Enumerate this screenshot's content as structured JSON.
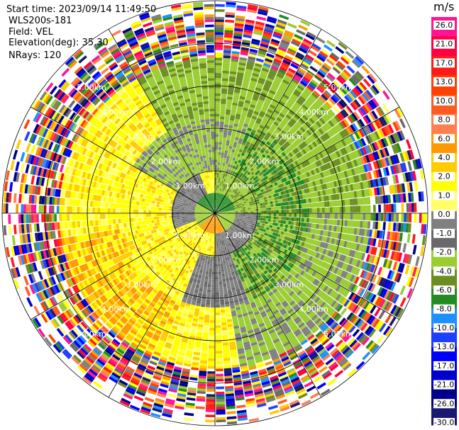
{
  "header": {
    "start_time": "Start time: 2023/09/14 11:49:50",
    "instrument": "WLS200s-181",
    "field": "Field: VEL",
    "elevation": "Elevation(deg): 35.30",
    "nrays": "NRays: 120"
  },
  "colorbar": {
    "unit": "m/s",
    "ticks": [
      "26.0",
      "21.0",
      "17.0",
      "13.0",
      "10.0",
      "8.0",
      "6.0",
      "4.0",
      "2.0",
      "1.0",
      "0.0",
      "-1.0",
      "-2.0",
      "-4.0",
      "-6.0",
      "-8.0",
      "-10.0",
      "-13.0",
      "-17.0",
      "-21.0",
      "-26.0",
      "-30.0"
    ],
    "colors": [
      "#ff1493",
      "#ff0040",
      "#ff1a1a",
      "#ff4000",
      "#ff5a1f",
      "#ff7f50",
      "#ff9900",
      "#ffcc00",
      "#ffff00",
      "#ffff66",
      "#808080",
      "#696969",
      "#9acd32",
      "#6b8e23",
      "#228b22",
      "#1e90ff",
      "#1f3fff",
      "#0000ff",
      "#0000cd",
      "#00008b",
      "#191970"
    ]
  },
  "chart_data": {
    "type": "polar-ppi",
    "field": "VEL",
    "unit": "m/s",
    "nrays": 120,
    "elevation_deg": 35.3,
    "range_ring_labels": [
      "1.00km",
      "2.00km",
      "3.00km",
      "4.00km",
      "5.00km"
    ],
    "range_rings_km": [
      1,
      2,
      3,
      4,
      5
    ],
    "max_range_km": 5,
    "pattern": {
      "near_core_km": 0.45,
      "core_color": "#228b22",
      "band1_outer_km": 1.0,
      "band2_outer_km": 2.2,
      "band3_outer_km": 3.6,
      "noise_start_km": 3.6
    }
  }
}
